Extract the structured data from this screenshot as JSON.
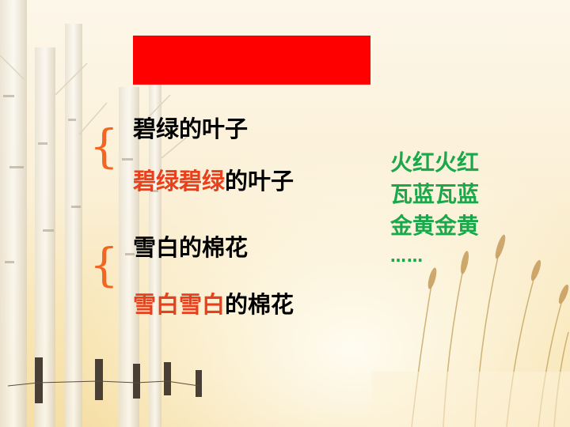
{
  "slide": {
    "colors": {
      "title_bar": "#ff0000",
      "brace": "#f26522",
      "highlight": "#e8401c",
      "green_text": "#1aa84a"
    },
    "groups": [
      {
        "brace": "{",
        "phrases": [
          {
            "highlight": "",
            "rest": "碧绿的叶子"
          },
          {
            "highlight": "碧绿碧绿",
            "rest": "的叶子"
          }
        ]
      },
      {
        "brace": "{",
        "phrases": [
          {
            "highlight": "",
            "rest": "雪白的棉花"
          },
          {
            "highlight": "雪白雪白",
            "rest": "的棉花"
          }
        ]
      }
    ],
    "examples": [
      "火红火红",
      "瓦蓝瓦蓝",
      "金黄金黄",
      "……"
    ]
  }
}
